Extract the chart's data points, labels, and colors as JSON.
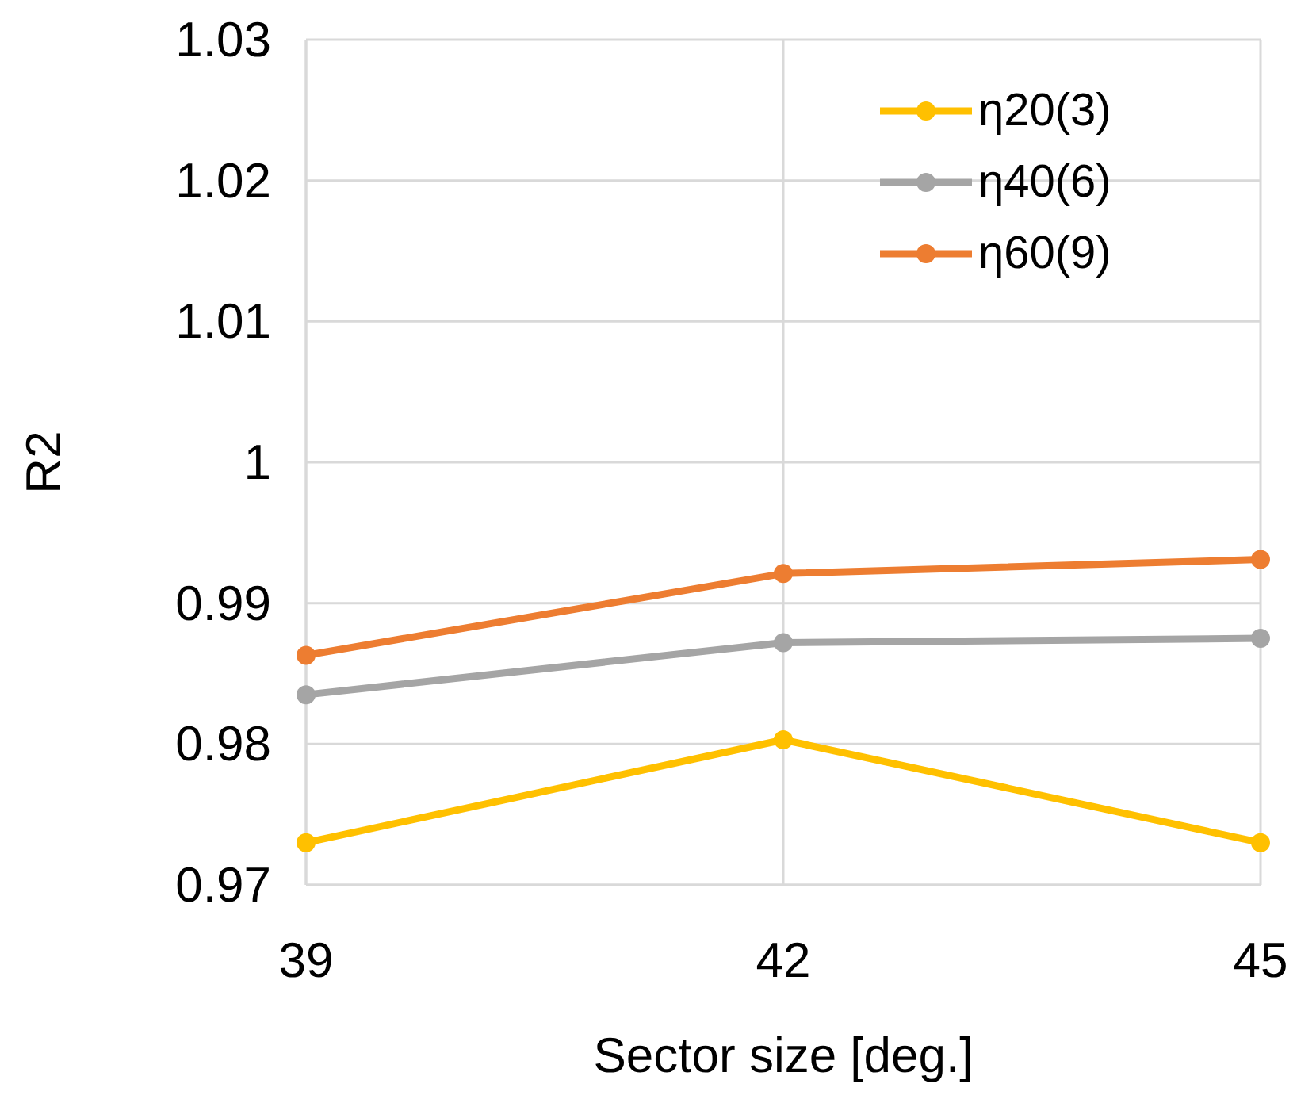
{
  "chart_data": {
    "type": "line",
    "xlabel": "Sector size [deg.]",
    "ylabel": "R2",
    "x": [
      39,
      42,
      45
    ],
    "xlim": [
      39,
      45
    ],
    "xticks": [
      39,
      42,
      45
    ],
    "ylim": [
      0.97,
      1.03
    ],
    "yticks": [
      0.97,
      0.98,
      0.99,
      {
        "value": 1,
        "label": "1"
      },
      1.01,
      1.02,
      1.03
    ],
    "grid": true,
    "legend": "top right",
    "marker": "circle",
    "line_style": "solid",
    "series": [
      {
        "name": "η20(3)",
        "color": "#ffc000",
        "values": [
          0.973,
          0.9803,
          0.973
        ]
      },
      {
        "name": "η40(6)",
        "color": "#a5a5a5",
        "values": [
          0.9835,
          0.9872,
          0.9875
        ]
      },
      {
        "name": "η60(9)",
        "color": "#ed7d31",
        "values": [
          0.9863,
          0.9921,
          0.9931
        ]
      }
    ]
  }
}
